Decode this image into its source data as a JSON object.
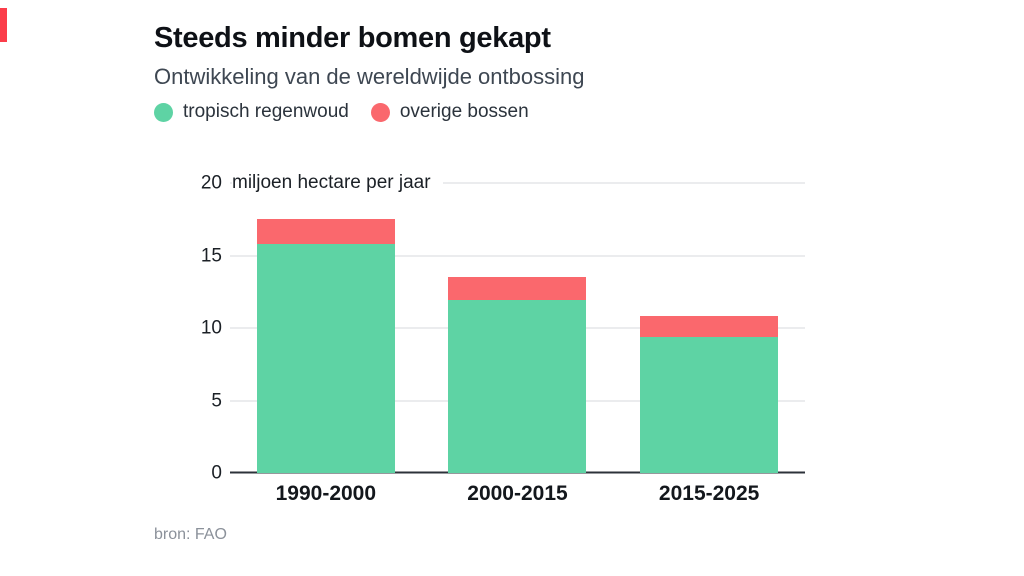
{
  "accent_color": "#fb3d4a",
  "header": {
    "title": "Steeds minder bomen gekapt",
    "subtitle": "Ontwikkeling van de wereldwijde ontbossing"
  },
  "legend": [
    {
      "label": "tropisch regenwoud",
      "color": "#5ed3a4"
    },
    {
      "label": "overige bossen",
      "color": "#fa686d"
    }
  ],
  "source": "bron: FAO",
  "chart_data": {
    "type": "bar",
    "stacked": true,
    "categories": [
      "1990-2000",
      "2000-2015",
      "2015-2025"
    ],
    "series": [
      {
        "name": "tropisch regenwoud",
        "color": "#5ed3a4",
        "values": [
          15.8,
          11.9,
          9.4
        ]
      },
      {
        "name": "overige bossen",
        "color": "#fa686d",
        "values": [
          1.7,
          1.6,
          1.4
        ]
      }
    ],
    "title": "Steeds minder bomen gekapt",
    "subtitle": "Ontwikkeling van de wereldwijde ontbossing",
    "xlabel": "",
    "ylabel": "miljoen hectare per jaar",
    "ylim": [
      0,
      20
    ],
    "yticks": [
      0,
      5,
      10,
      15,
      20
    ],
    "grid": true,
    "legend_position": "top"
  }
}
